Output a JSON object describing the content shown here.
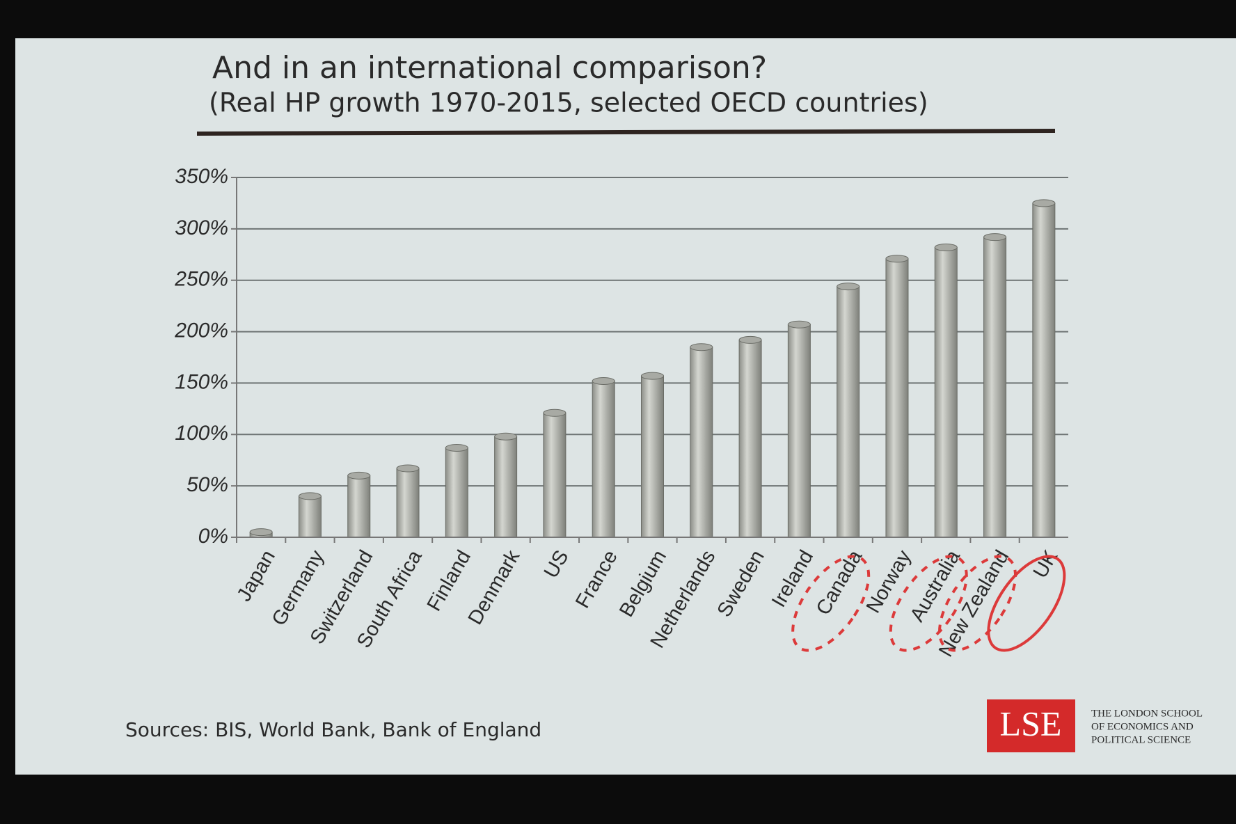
{
  "chart_data": {
    "type": "bar",
    "title": "And in an international comparison?",
    "subtitle": "(Real HP growth 1970-2015, selected OECD countries)",
    "categories": [
      "Japan",
      "Germany",
      "Switzerland",
      "South Africa",
      "Finland",
      "Denmark",
      "US",
      "France",
      "Belgium",
      "Netherlands",
      "Sweden",
      "Ireland",
      "Canada",
      "Norway",
      "Australia",
      "New Zealand",
      "UK"
    ],
    "values": [
      5,
      40,
      60,
      67,
      87,
      98,
      121,
      152,
      157,
      185,
      192,
      207,
      244,
      271,
      282,
      292,
      325
    ],
    "color": "#a8aaa4",
    "ylim": [
      0,
      350
    ],
    "yticks": [
      {
        "value": 0,
        "label": "0%"
      },
      {
        "value": 50,
        "label": "50%"
      },
      {
        "value": 100,
        "label": "100%"
      },
      {
        "value": 150,
        "label": "150%"
      },
      {
        "value": 200,
        "label": "200%"
      },
      {
        "value": 250,
        "label": "250%"
      },
      {
        "value": 300,
        "label": "300%"
      },
      {
        "value": 350,
        "label": "350%"
      }
    ],
    "grid": true,
    "source": "Sources: BIS, World Bank, Bank of England"
  },
  "logo": {
    "mark": "LSE",
    "lines": [
      "THE LONDON SCHOOL",
      "OF ECONOMICS AND",
      "POLITICAL SCIENCE"
    ]
  }
}
